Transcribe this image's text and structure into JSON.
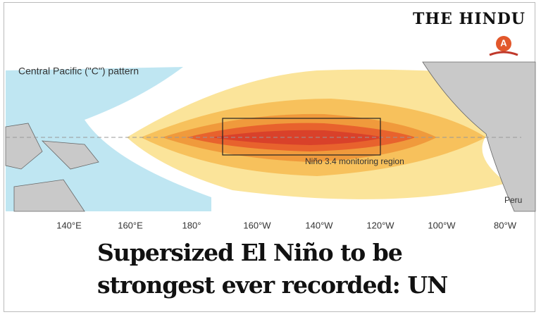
{
  "header": {
    "logo": "THE HINDU"
  },
  "map": {
    "title": "Central Pacific (\"C\") pattern",
    "box_label": "Niño 3.4 monitoring region",
    "places": [
      "Peru"
    ],
    "longitude_labels": [
      "140°E",
      "160°E",
      "180°",
      "160°W",
      "140°W",
      "120°W",
      "100°W",
      "80°W"
    ]
  },
  "headline": "Supersized El Niño to be strongest ever recorded: UN"
}
